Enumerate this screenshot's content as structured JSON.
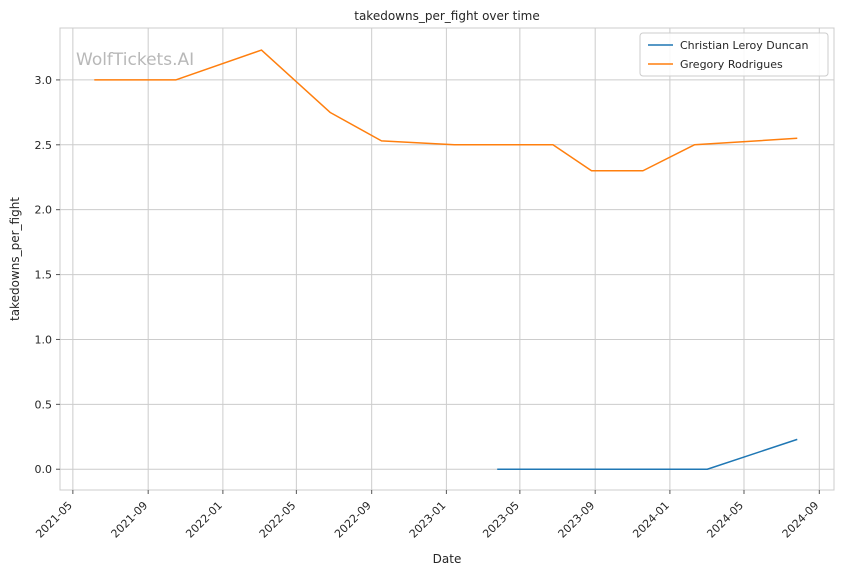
{
  "chart_data": {
    "type": "line",
    "title": "takedowns_per_fight over time",
    "xlabel": "Date",
    "ylabel": "takedowns_per_fight",
    "watermark": "WolfTickets.AI",
    "x_ticks": [
      "2021-05",
      "2021-09",
      "2022-01",
      "2022-05",
      "2022-09",
      "2023-01",
      "2023-05",
      "2023-09",
      "2024-01",
      "2024-05",
      "2024-09"
    ],
    "y_ticks": [
      "0.0",
      "0.5",
      "1.0",
      "1.5",
      "2.0",
      "2.5",
      "3.0"
    ],
    "xlim": [
      "2021-04-10",
      "2024-09-25"
    ],
    "ylim": [
      -0.16,
      3.4
    ],
    "grid": true,
    "legend_position": "top-right",
    "series": [
      {
        "name": "Christian Leroy Duncan",
        "color": "#1f77b4",
        "points": [
          {
            "x": "2023-03-25",
            "y": 0.0
          },
          {
            "x": "2023-06-24",
            "y": 0.0
          },
          {
            "x": "2023-10-21",
            "y": 0.0
          },
          {
            "x": "2024-03-02",
            "y": 0.0
          },
          {
            "x": "2024-07-27",
            "y": 0.23
          }
        ]
      },
      {
        "name": "Gregory Rodrigues",
        "color": "#ff7f0e",
        "points": [
          {
            "x": "2021-06-05",
            "y": 3.0
          },
          {
            "x": "2021-10-16",
            "y": 3.0
          },
          {
            "x": "2022-03-05",
            "y": 3.23
          },
          {
            "x": "2022-06-25",
            "y": 2.75
          },
          {
            "x": "2022-09-17",
            "y": 2.53
          },
          {
            "x": "2023-01-14",
            "y": 2.5
          },
          {
            "x": "2023-06-24",
            "y": 2.5
          },
          {
            "x": "2023-08-26",
            "y": 2.3
          },
          {
            "x": "2023-11-18",
            "y": 2.3
          },
          {
            "x": "2024-02-10",
            "y": 2.5
          },
          {
            "x": "2024-07-27",
            "y": 2.55
          }
        ]
      }
    ]
  }
}
